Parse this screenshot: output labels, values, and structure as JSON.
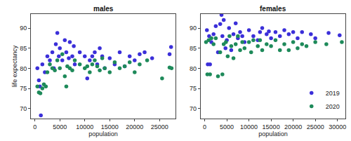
{
  "chart_data": [
    {
      "type": "scatter",
      "title": "males",
      "x_label": "population",
      "y_label": "life expectancy",
      "marker": "circle",
      "xlim": [
        -800,
        28200
      ],
      "xticks": [
        0,
        5000,
        10000,
        15000,
        20000,
        25000
      ],
      "ylim": [
        67.5,
        93.5
      ],
      "yticks": [
        70,
        75,
        80,
        85,
        90
      ],
      "series": [
        {
          "name": "2019",
          "color": "#3b2fd9",
          "x": [
            1200,
            500,
            800,
            1000,
            1500,
            2000,
            2500,
            3000,
            3500,
            3800,
            4200,
            4500,
            4800,
            5000,
            5500,
            6000,
            6300,
            6800,
            7000,
            7500,
            7800,
            8000,
            9000,
            10000,
            10500,
            11000,
            11500,
            12000,
            12500,
            13000,
            13500,
            14000,
            15000,
            16000,
            17000,
            18000,
            19000,
            20000,
            21000,
            22000,
            23500,
            27000,
            27300
          ],
          "values": [
            68.3,
            80,
            77,
            75.5,
            81,
            79,
            83,
            82,
            84,
            80,
            86,
            88.8,
            83,
            85,
            82,
            87,
            84,
            82.5,
            86.5,
            83,
            85.5,
            81,
            84,
            83,
            77.5,
            82,
            83,
            84,
            81,
            85,
            83,
            80,
            82.5,
            81,
            84,
            80.5,
            83,
            82,
            83.5,
            84,
            82.5,
            83.5,
            85.3
          ]
        },
        {
          "name": "2020",
          "color": "#1e8a5a",
          "x": [
            500,
            800,
            1100,
            1500,
            1800,
            2200,
            2500,
            3000,
            3500,
            4000,
            4500,
            5000,
            5500,
            6000,
            6300,
            6500,
            7000,
            7500,
            8000,
            9000,
            10000,
            10500,
            11000,
            11500,
            12000,
            12500,
            13000,
            13500,
            14000,
            15000,
            16000,
            17000,
            18000,
            19000,
            20000,
            21000,
            22500,
            25500,
            27000,
            27400
          ],
          "values": [
            75.5,
            74,
            73.8,
            75,
            76,
            75.5,
            79,
            81,
            80,
            79.5,
            82,
            80,
            83.5,
            78,
            75.5,
            80.5,
            80,
            79.5,
            82,
            81,
            80,
            80.5,
            79,
            81,
            82,
            80.5,
            79.5,
            82.5,
            80,
            79,
            81.5,
            80,
            80.5,
            81.5,
            79,
            81,
            82,
            77.5,
            80.2,
            80
          ]
        }
      ]
    },
    {
      "type": "scatter",
      "title": "females",
      "x_label": "population",
      "marker": "circle",
      "legend": "bottom right",
      "xlim": [
        -900,
        31800
      ],
      "xticks": [
        0,
        5000,
        10000,
        15000,
        20000,
        25000,
        30000
      ],
      "ylim": [
        67.5,
        93.5
      ],
      "yticks": [
        70,
        75,
        80,
        85,
        90
      ],
      "series": [
        {
          "name": "2019",
          "color": "#3b2fd9",
          "x": [
            500,
            700,
            1000,
            1200,
            1500,
            2000,
            2500,
            3000,
            3500,
            3800,
            4000,
            4300,
            4700,
            5000,
            5500,
            6000,
            6500,
            7000,
            7500,
            8000,
            8500,
            9000,
            10000,
            11000,
            12000,
            12500,
            13000,
            14000,
            14500,
            15000,
            16000,
            17000,
            18000,
            19000,
            20000,
            21000,
            22000,
            24000,
            25000,
            28000,
            30500
          ],
          "values": [
            89.5,
            81,
            88,
            81,
            86.5,
            88.5,
            90.5,
            84,
            91,
            93.3,
            88,
            92,
            85,
            87,
            90,
            84.5,
            88.5,
            91.2,
            87.5,
            89,
            88,
            86.5,
            89.5,
            88,
            87,
            89,
            90,
            88.5,
            89.2,
            87.5,
            89,
            88,
            89.5,
            88.5,
            89,
            87.5,
            89,
            88.5,
            87.5,
            88.8,
            88.2
          ]
        },
        {
          "name": "2020",
          "color": "#1e8a5a",
          "x": [
            300,
            600,
            900,
            1200,
            1500,
            2000,
            2500,
            3000,
            3500,
            4000,
            4300,
            4800,
            5200,
            5600,
            6000,
            6500,
            7000,
            7500,
            8000,
            8500,
            9000,
            10000,
            10500,
            11000,
            12000,
            12500,
            13000,
            14000,
            15000,
            16000,
            17000,
            18000,
            19000,
            20000,
            21000,
            22000,
            23000,
            25000,
            27500,
            31000
          ],
          "values": [
            86.5,
            78.5,
            87,
            78.5,
            87.5,
            86,
            87.5,
            78,
            84,
            78.5,
            86,
            86.5,
            83,
            88,
            85.5,
            82.5,
            86,
            88,
            84.5,
            86.5,
            85,
            86.5,
            84,
            87,
            85.5,
            87,
            84.5,
            86,
            85.5,
            87,
            84.5,
            86,
            84.5,
            86.5,
            85,
            86,
            85.5,
            86.5,
            86,
            86.5
          ]
        }
      ]
    }
  ]
}
